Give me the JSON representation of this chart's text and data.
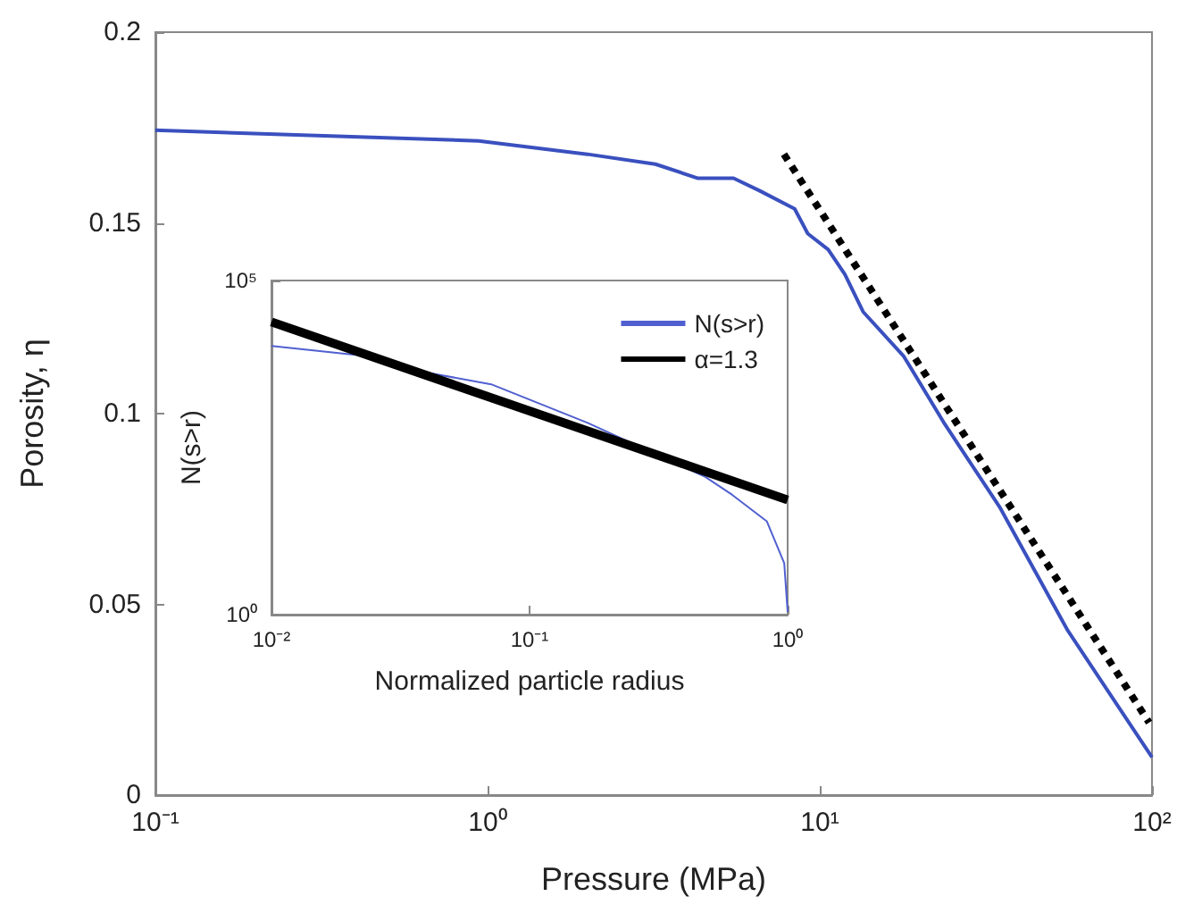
{
  "chart_data": [
    {
      "type": "line",
      "xlabel": "Pressure (MPa)",
      "ylabel": "Porosity, η",
      "log": "x",
      "xlim": [
        0.1,
        100
      ],
      "ylim": [
        0,
        0.2
      ],
      "xticks": [
        {
          "value": 0.1,
          "label": "10⁻¹"
        },
        {
          "value": 1,
          "label": "10⁰"
        },
        {
          "value": 10,
          "label": "10¹"
        },
        {
          "value": 100,
          "label": "10²"
        }
      ],
      "yticks": [
        0,
        0.05,
        0.1,
        0.15,
        0.2
      ],
      "series": [
        {
          "color": "#3a50bf",
          "x": [
            0.1,
            0.94,
            2.0,
            3.2,
            4.3,
            5.5,
            6.6,
            8.4,
            9.2,
            10.6,
            11.9,
            13.5,
            17.9,
            23.8,
            34.9,
            55.8,
            100
          ],
          "values": [
            0.1743,
            0.1715,
            0.168,
            0.1654,
            0.1617,
            0.1617,
            0.1584,
            0.1537,
            0.1472,
            0.143,
            0.1365,
            0.1267,
            0.115,
            0.0972,
            0.0753,
            0.0431,
            0.0099
          ]
        },
        {
          "color": "#000000",
          "line_style": "dotted",
          "x": [
            7.8,
            98
          ],
          "values": [
            0.168,
            0.019
          ]
        }
      ]
    },
    {
      "type": "line",
      "xlabel": "Normalized particle radius",
      "ylabel": "N(s>r)",
      "log": "xy",
      "xlim": [
        0.01,
        1
      ],
      "ylim": [
        1,
        100000
      ],
      "legend": "top right",
      "xticks": [
        {
          "value": 0.01,
          "label": "10⁻²"
        },
        {
          "value": 0.1,
          "label": "10⁻¹"
        },
        {
          "value": 1,
          "label": "10⁰"
        }
      ],
      "yticks": [
        {
          "value": 1,
          "label": "10⁰"
        },
        {
          "value": 100000,
          "label": "10⁵"
        }
      ],
      "series": [
        {
          "name": "N(s>r)",
          "color": "#5060d0",
          "x": [
            0.01,
            0.02,
            0.027,
            0.032,
            0.071,
            0.168,
            0.48,
            0.61,
            0.83,
            0.97,
            1.0
          ],
          "values": [
            10500,
            7900,
            7100,
            4900,
            2800,
            740,
            115,
            62,
            25,
            5.9,
            1.1
          ]
        },
        {
          "name": "α=1.3",
          "color": "#000000",
          "x": [
            0.01,
            1
          ],
          "values": [
            24000,
            52
          ]
        }
      ]
    }
  ]
}
